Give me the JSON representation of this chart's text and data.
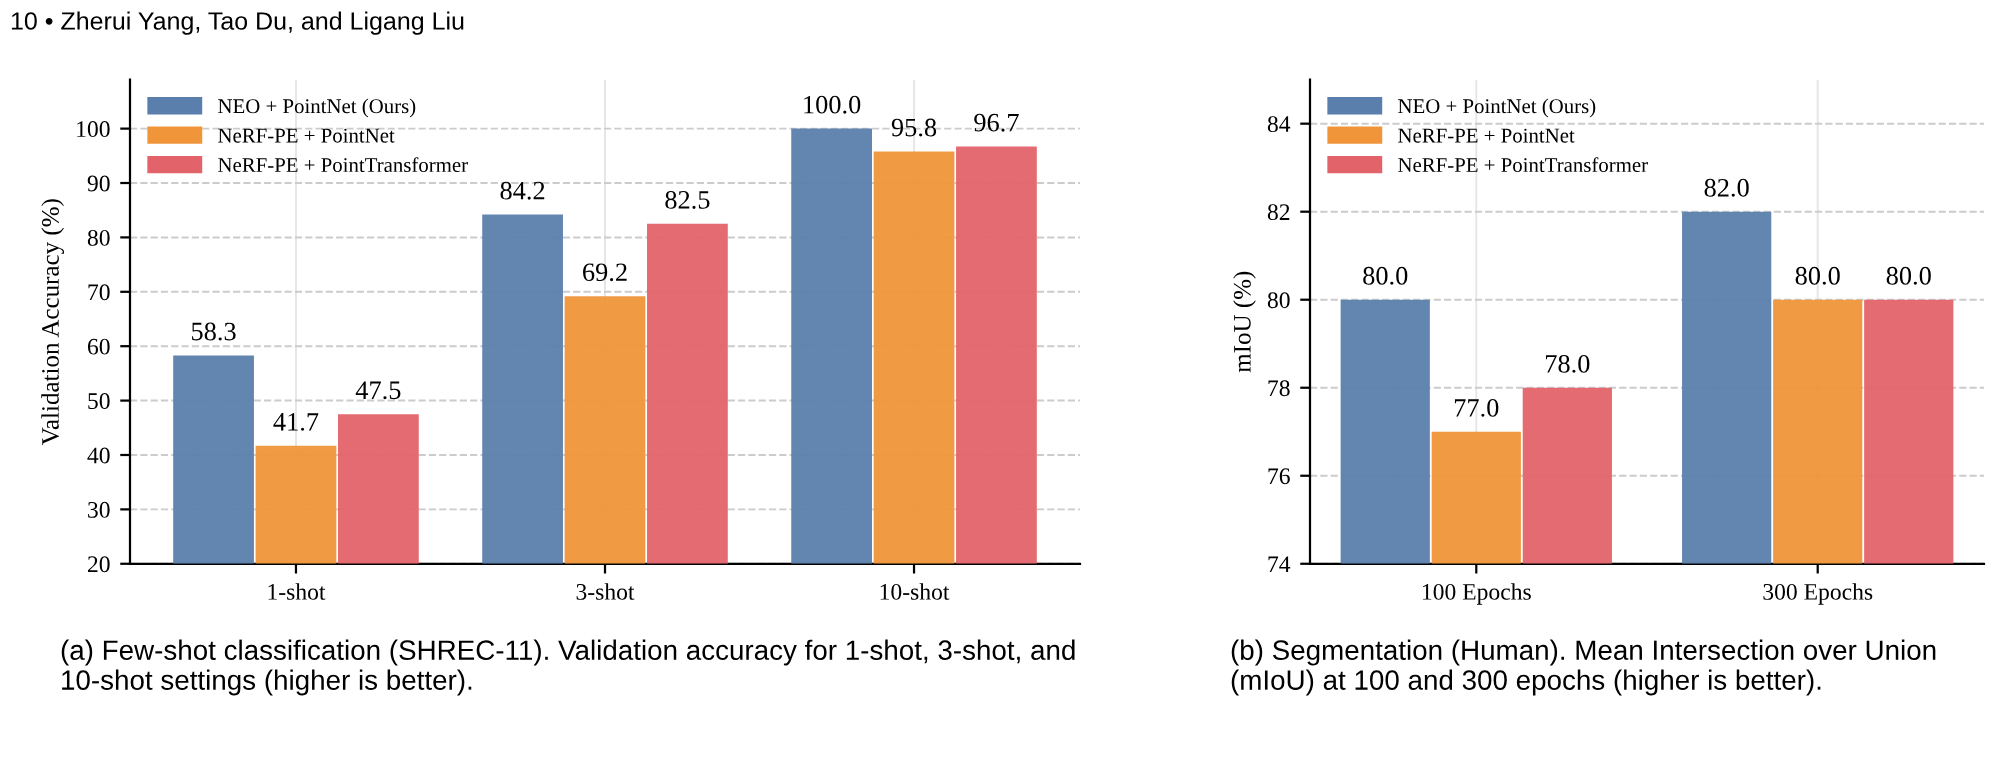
{
  "chart_data": [
    {
      "type": "bar",
      "categories": [
        "1-shot",
        "3-shot",
        "10-shot"
      ],
      "ylabel": "Validation Accuracy (%)",
      "series": [
        {
          "name": "NEO + PointNet (Ours)",
          "color": "#5b7fad",
          "values": [
            58.3,
            84.2,
            100
          ],
          "value_labels": [
            "58.3",
            "84.2",
            "100.0"
          ]
        },
        {
          "name": "NeRF-PE + PointNet",
          "color": "#f0953a",
          "values": [
            41.7,
            69.2,
            95.8
          ],
          "value_labels": [
            "41.7",
            "69.2",
            "95.8"
          ]
        },
        {
          "name": "NeRF-PE + PointTransformer",
          "color": "#e3636a",
          "values": [
            47.5,
            82.5,
            96.7
          ],
          "value_labels": [
            "47.5",
            "82.5",
            "96.7"
          ]
        }
      ],
      "ylim": [
        20,
        109
      ],
      "yticks": [
        20,
        30,
        40,
        50,
        60,
        70,
        80,
        90,
        100
      ],
      "grid": true,
      "legend": "top left",
      "annotations": [
        "10 • Zherui Yang, Tao Du, and Ligang Liu",
        "(a) Few-shot classification (SHREC-11). Validation accuracy for 1-shot, 3-shot, and 10-shot settings (higher is better)."
      ]
    },
    {
      "type": "bar",
      "categories": [
        "100 Epochs",
        "300 Epochs"
      ],
      "ylabel": "mIoU (%)",
      "series": [
        {
          "name": "NEO + PointNet (Ours)",
          "color": "#5b7fad",
          "values": [
            80,
            82
          ],
          "value_labels": [
            "80.0",
            "82.0"
          ]
        },
        {
          "name": "NeRF-PE + PointNet",
          "color": "#f0953a",
          "values": [
            77,
            80
          ],
          "value_labels": [
            "77.0",
            "80.0"
          ]
        },
        {
          "name": "NeRF-PE + PointTransformer",
          "color": "#e3636a",
          "values": [
            78,
            80
          ],
          "value_labels": [
            "78.0",
            "80.0"
          ]
        }
      ],
      "ylim": [
        74,
        85
      ],
      "yticks": [
        74,
        76,
        78,
        80,
        82,
        84
      ],
      "grid": true,
      "legend": "top left",
      "annotations": [
        "(b) Segmentation (Human). Mean Intersection over Union (mIoU) at 100 and 300 epochs (higher is better)."
      ]
    }
  ]
}
